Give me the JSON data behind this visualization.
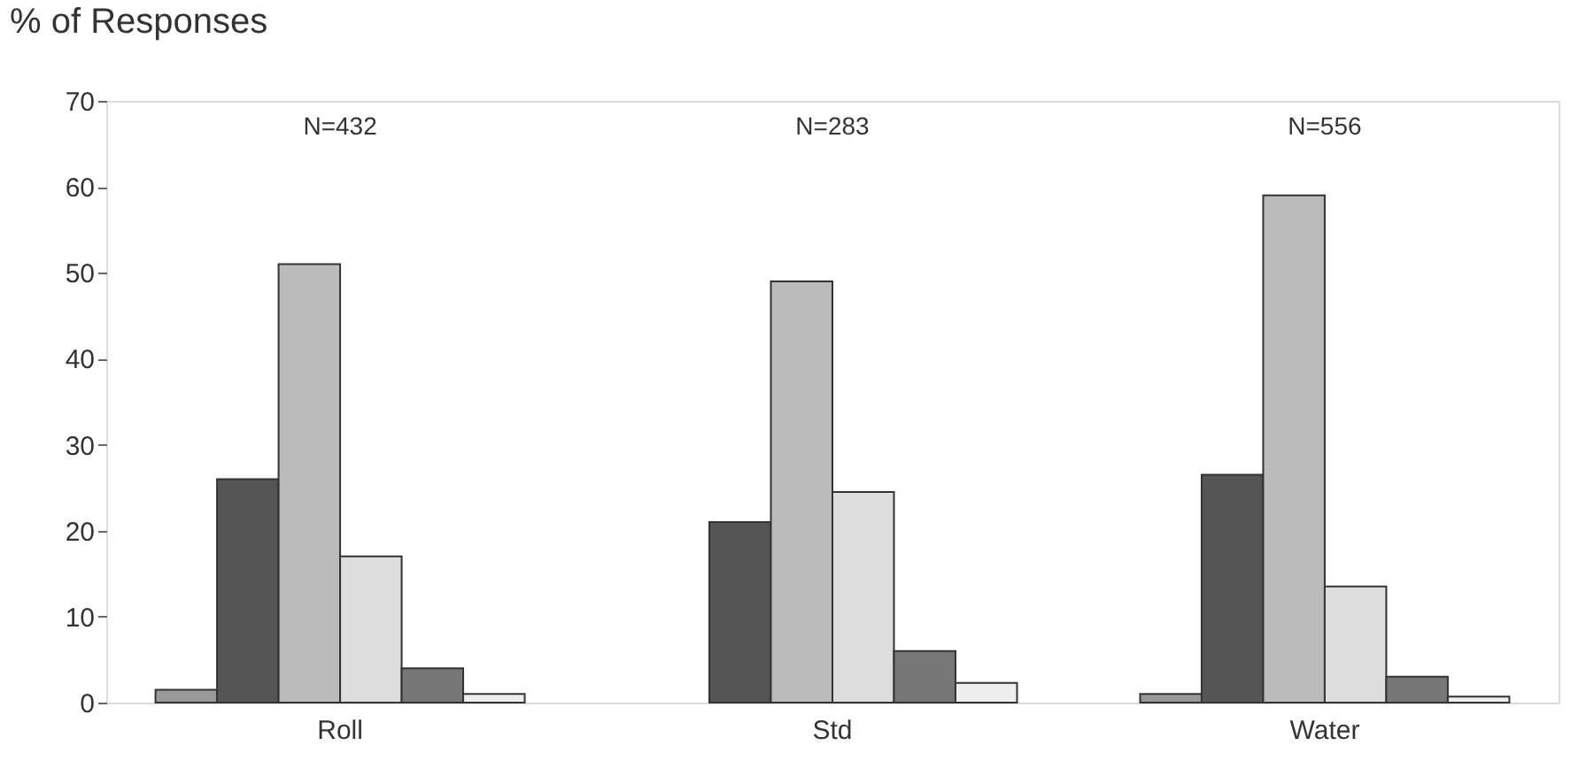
{
  "chart_data": {
    "type": "bar",
    "ylabel": "% of Responses",
    "categories": [
      "Roll",
      "Std",
      "Water"
    ],
    "series": [
      {
        "color": "#999999",
        "values": [
          1.5,
          null,
          1
        ]
      },
      {
        "color": "#555555",
        "values": [
          26,
          21,
          26.5
        ]
      },
      {
        "color": "#bbbbbb",
        "values": [
          51,
          49,
          59
        ]
      },
      {
        "color": "#dddddd",
        "values": [
          17,
          24.5,
          13.5
        ]
      },
      {
        "color": "#777777",
        "values": [
          4,
          6,
          3
        ]
      },
      {
        "color": "#eeeeee",
        "values": [
          1,
          2.3,
          0.7
        ]
      }
    ],
    "ylim": [
      0,
      70
    ],
    "yticks": [
      0,
      10,
      20,
      30,
      40,
      50,
      60,
      70
    ],
    "annotations": [
      "N=432",
      "N=283",
      "N=556"
    ],
    "grid": false,
    "legend": false
  }
}
